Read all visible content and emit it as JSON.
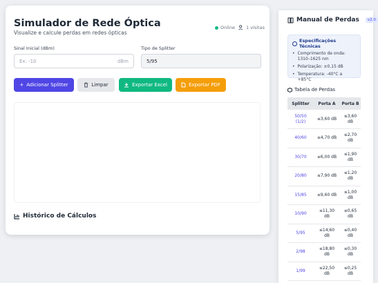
{
  "header": {
    "title": "Simulador de Rede Óptica",
    "subtitle": "Visualize e calcule perdas em redes ópticas",
    "status": "Online",
    "visits": "1 visitas"
  },
  "form": {
    "signal_label": "Sinal Inicial (dBm)",
    "signal_placeholder": "Ex: -10",
    "signal_unit": "dBm",
    "splitter_label": "Tipo de Splitter",
    "splitter_value": "5/95"
  },
  "buttons": [
    "Adicionar Splitter",
    "Limpar",
    "Exportar Excel",
    "Exportar PDF"
  ],
  "history": {
    "title": "Histórico de Cálculos"
  },
  "manual": {
    "title": "Manual de Perdas",
    "version": "v2.0",
    "specs_title": "Especificações Técnicas",
    "specs": [
      "Comprimento de onda: 1310–1625 nm",
      "Polarização: ±0,15 dB",
      "Temperatura: -40°C a +85°C"
    ],
    "table_title": "Tabela de Perdas",
    "table": {
      "headers": [
        "Splitter",
        "Porta A",
        "Porta B"
      ],
      "rows": [
        [
          "50/50 (1/2)",
          "≤3,60 dB",
          "≤3,60 dB"
        ],
        [
          "40/60",
          "≤4,70 dB",
          "≤2,70 dB"
        ],
        [
          "30/70",
          "≤6,00 dB",
          "≤1,90 dB"
        ],
        [
          "20/80",
          "≤7,90 dB",
          "≤1,20 dB"
        ],
        [
          "15/85",
          "≤9,60 dB",
          "≤1,00 dB"
        ],
        [
          "10/90",
          "≤11,30 dB",
          "≤0,65 dB"
        ],
        [
          "5/95",
          "≤14,60 dB",
          "≤0,40 dB"
        ],
        [
          "2/98",
          "≤18,80 dB",
          "≤0,30 dB"
        ],
        [
          "1/99",
          "≤22,50 dB",
          "≤0,25 dB"
        ]
      ]
    }
  }
}
